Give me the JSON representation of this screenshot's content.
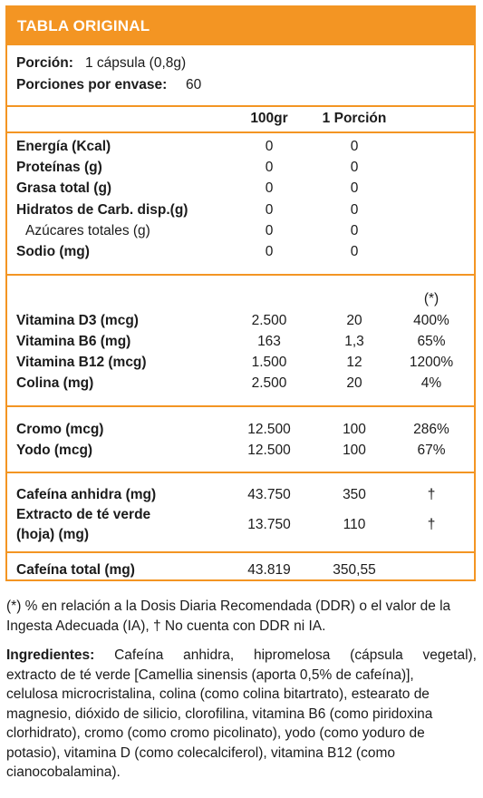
{
  "title": "TABLA ORIGINAL",
  "serving": {
    "portion_label": "Porción:",
    "portion_value": "1 cápsula (0,8g)",
    "servings_label": "Porciones por envase:",
    "servings_value": "60"
  },
  "columns": {
    "per100": "100gr",
    "perPortion": "1 Porción",
    "ddr": "(*)"
  },
  "rows": {
    "energia": {
      "label": "Energía (Kcal)",
      "v100": "0",
      "vp": "0"
    },
    "proteinas": {
      "label": "Proteínas (g)",
      "v100": "0",
      "vp": "0"
    },
    "grasa": {
      "label": "Grasa total (g)",
      "v100": "0",
      "vp": "0"
    },
    "hidratos": {
      "label": "Hidratos de Carb. disp.(g)",
      "v100": "0",
      "vp": "0"
    },
    "azucares": {
      "label": "Azúcares totales (g)",
      "v100": "0",
      "vp": "0"
    },
    "sodio": {
      "label": "Sodio (mg)",
      "v100": "0",
      "vp": "0"
    },
    "vitd3": {
      "label": "Vitamina D3 (mcg)",
      "v100": "2.500",
      "vp": "20",
      "ddr": "400%"
    },
    "vitb6": {
      "label": "Vitamina B6 (mg)",
      "v100": "163",
      "vp": "1,3",
      "ddr": "65%"
    },
    "vitb12": {
      "label": "Vitamina B12 (mcg)",
      "v100": "1.500",
      "vp": "12",
      "ddr": "1200%"
    },
    "colina": {
      "label": "Colina (mg)",
      "v100": "2.500",
      "vp": "20",
      "ddr": "4%"
    },
    "cromo": {
      "label": "Cromo (mcg)",
      "v100": "12.500",
      "vp": "100",
      "ddr": "286%"
    },
    "yodo": {
      "label": "Yodo (mcg)",
      "v100": "12.500",
      "vp": "100",
      "ddr": "67%"
    },
    "cafeina": {
      "label": "Cafeína anhidra (mg)",
      "v100": "43.750",
      "vp": "350",
      "ddr": "†"
    },
    "te": {
      "label_line1": "Extracto de té verde",
      "label_line2": "(hoja) (mg)",
      "v100": "13.750",
      "vp": "110",
      "ddr": "†"
    },
    "total": {
      "label": "Cafeína total (mg)",
      "v100": "43.819",
      "vp": "350,55"
    }
  },
  "footnote": {
    "line1": "(*) % en relación a la Dosis Diaria Recomendada (DDR) o el valor de la",
    "line2": "Ingesta Adecuada (IA), † No cuenta con DDR ni IA."
  },
  "ingredients": {
    "label": "Ingredientes:",
    "line1": "Cafeína anhidra, hipromelosa (cápsula vegetal),",
    "line2": "extracto de té verde [Camellia sinensis (aporta 0,5% de cafeína)],",
    "line3": "celulosa microcristalina, colina (como colina bitartrato), estearato de",
    "line4": "magnesio, dióxido de silicio, clorofilina, vitamina B6 (como piridoxina",
    "line5": "clorhidrato), cromo (como cromo picolinato), yodo (como yoduro de",
    "line6": "potasio), vitamina D (como colecalciferol), vitamina B12 (como",
    "line7": "cianocobalamina)."
  }
}
